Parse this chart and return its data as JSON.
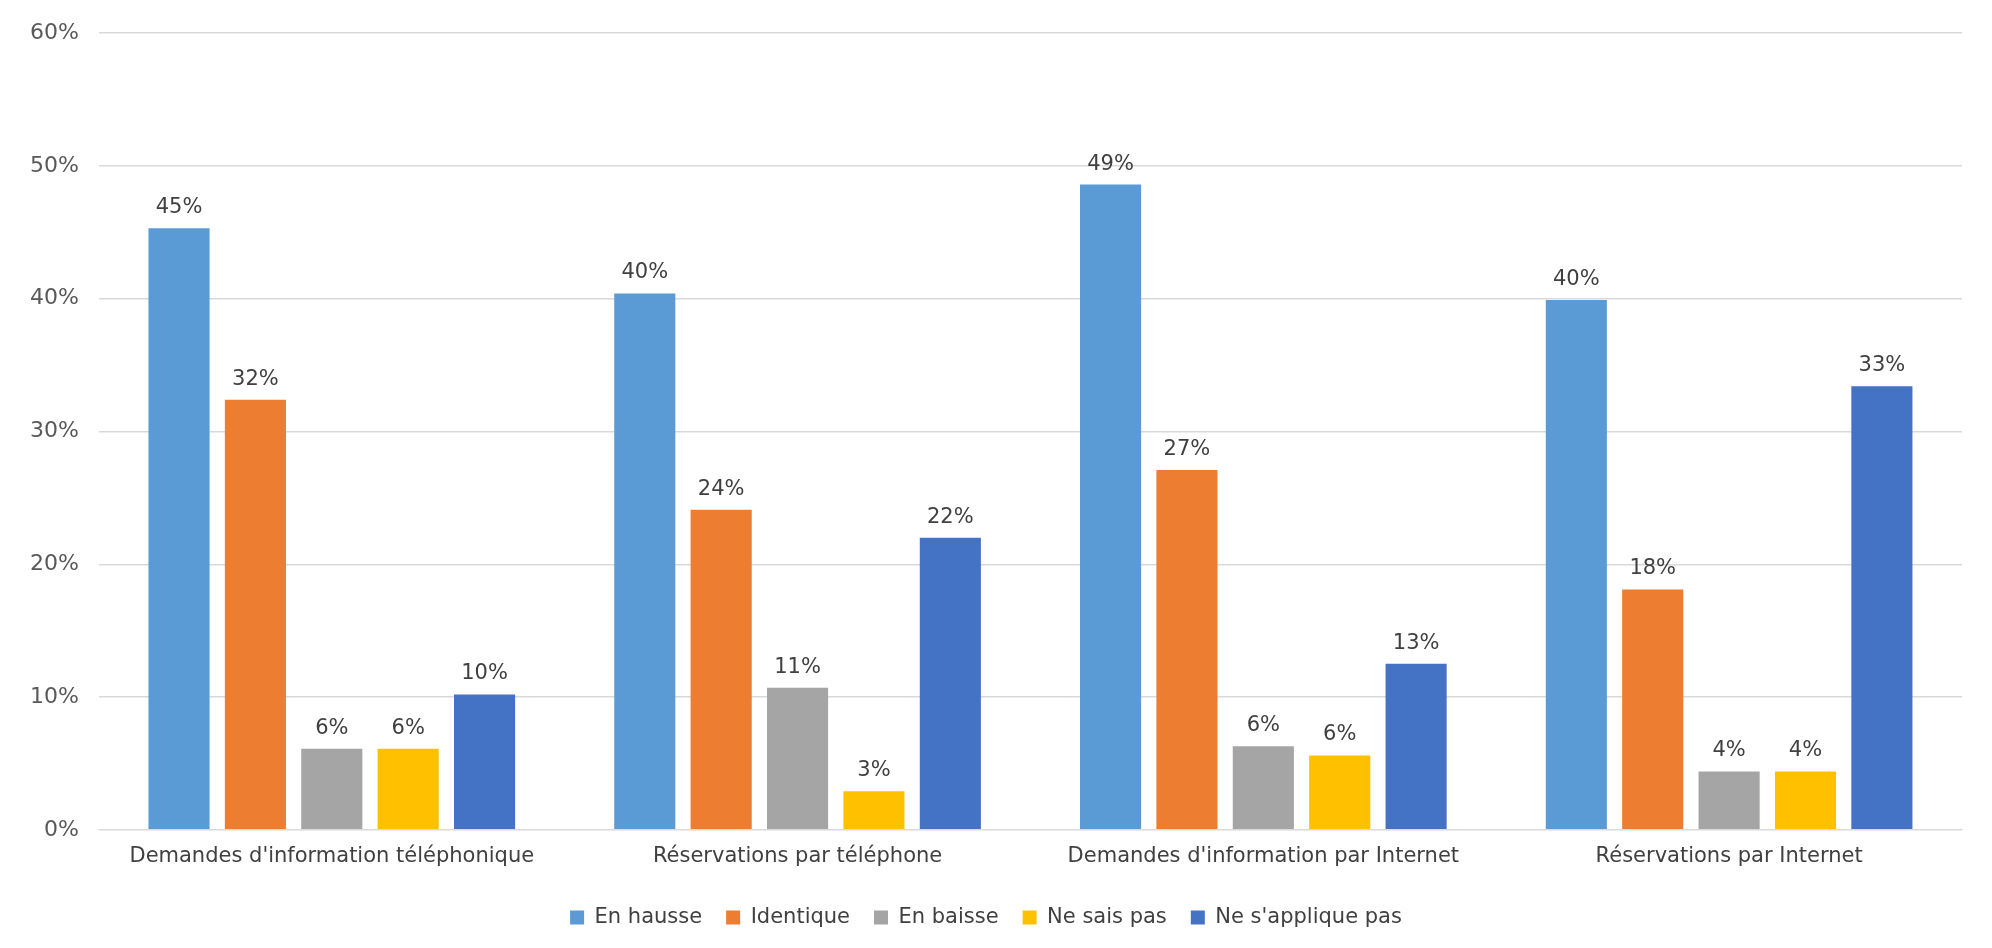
{
  "chart_data": {
    "type": "bar",
    "categories": [
      "Demandes d'information téléphonique",
      "Réservations par téléphone",
      "Demandes d'information par Internet",
      "Réservations par Internet"
    ],
    "series": [
      {
        "name": "En hausse",
        "color": "#5b9bd5",
        "values": [
          45.3,
          40.4,
          48.6,
          39.9
        ],
        "value_labels": [
          "45%",
          "40%",
          "49%",
          "40%"
        ]
      },
      {
        "name": "Identique",
        "color": "#ed7d31",
        "values": [
          32.4,
          24.1,
          27.1,
          18.1
        ],
        "value_labels": [
          "32%",
          "24%",
          "27%",
          "18%"
        ]
      },
      {
        "name": "En baisse",
        "color": "#a5a5a5",
        "values": [
          6.1,
          10.7,
          6.3,
          4.4
        ],
        "value_labels": [
          "6%",
          "11%",
          "6%",
          "4%"
        ]
      },
      {
        "name": "Ne sais pas",
        "color": "#ffc000",
        "values": [
          6.1,
          2.9,
          5.6,
          4.4
        ],
        "value_labels": [
          "6%",
          "3%",
          "6%",
          "4%"
        ]
      },
      {
        "name": "Ne s'applique pas",
        "color": "#4472c4",
        "values": [
          10.2,
          22.0,
          12.5,
          33.4
        ],
        "value_labels": [
          "10%",
          "22%",
          "13%",
          "33%"
        ]
      }
    ],
    "ylim": [
      0,
      60
    ],
    "yticks": [
      {
        "value": 0,
        "label": "0%"
      },
      {
        "value": 10,
        "label": "10%"
      },
      {
        "value": 20,
        "label": "20%"
      },
      {
        "value": 30,
        "label": "30%"
      },
      {
        "value": 40,
        "label": "40%"
      },
      {
        "value": 50,
        "label": "50%"
      },
      {
        "value": 60,
        "label": "60%"
      }
    ],
    "grid": "y",
    "legend": "bottom"
  }
}
